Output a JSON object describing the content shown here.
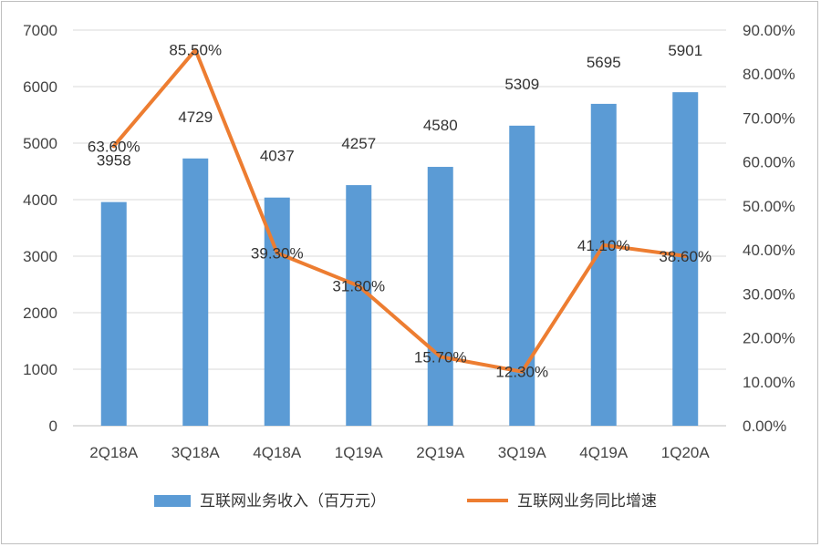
{
  "chart_data": {
    "type": "bar",
    "categories": [
      "2Q18A",
      "3Q18A",
      "4Q18A",
      "1Q19A",
      "2Q19A",
      "3Q19A",
      "4Q19A",
      "1Q20A"
    ],
    "series": [
      {
        "name": "互联网业务收入（百万元）",
        "type": "bar",
        "axis": "left",
        "color": "#5B9BD5",
        "values": [
          3958,
          4729,
          4037,
          4257,
          4580,
          5309,
          5695,
          5901
        ],
        "labels": [
          "3958",
          "4729",
          "4037",
          "4257",
          "4580",
          "5309",
          "5695",
          "5901"
        ]
      },
      {
        "name": "互联网业务同比增速",
        "type": "line",
        "axis": "right",
        "color": "#ED7D31",
        "values": [
          63.6,
          85.5,
          39.3,
          31.8,
          15.7,
          12.3,
          41.1,
          38.6
        ],
        "labels": [
          "63.60%",
          "85.50%",
          "39.30%",
          "31.80%",
          "15.70%",
          "12.30%",
          "41.10%",
          "38.60%"
        ]
      }
    ],
    "y_left": {
      "min": 0,
      "max": 7000,
      "ticks": [
        0,
        1000,
        2000,
        3000,
        4000,
        5000,
        6000,
        7000
      ],
      "tick_labels": [
        "0",
        "1000",
        "2000",
        "3000",
        "4000",
        "5000",
        "6000",
        "7000"
      ]
    },
    "y_right": {
      "min": 0,
      "max": 90,
      "ticks": [
        0,
        10,
        20,
        30,
        40,
        50,
        60,
        70,
        80,
        90
      ],
      "tick_labels": [
        "0.00%",
        "10.00%",
        "20.00%",
        "30.00%",
        "40.00%",
        "50.00%",
        "60.00%",
        "70.00%",
        "80.00%",
        "90.00%"
      ]
    },
    "grid": true,
    "legend_position": "bottom"
  }
}
